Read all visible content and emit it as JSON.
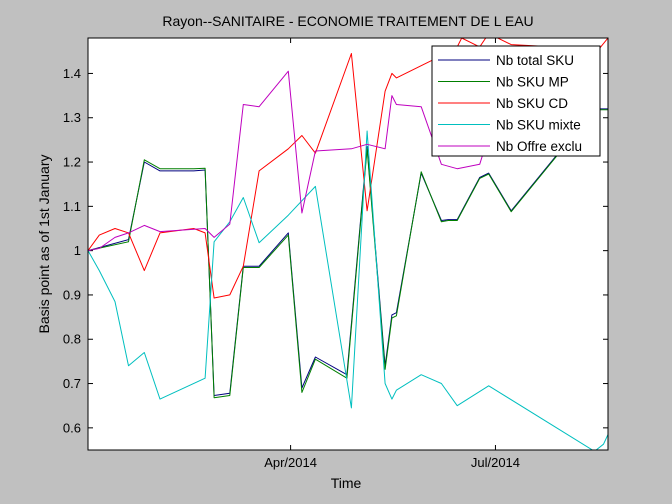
{
  "chart_data": {
    "type": "line",
    "title": "Rayon--SANITAIRE - ECONOMIE TRAITEMENT DE L EAU",
    "xlabel": "Time",
    "ylabel": "Basis point as of 1st January",
    "x_range": [
      "2014-01-01",
      "2014-08-20"
    ],
    "ylim": [
      0.55,
      1.48
    ],
    "x_ticks": [
      {
        "date": "2014-04-01",
        "label": "Apr/2014"
      },
      {
        "date": "2014-07-01",
        "label": "Jul/2014"
      }
    ],
    "y_ticks": [
      {
        "value": 0.6,
        "label": "0.6"
      },
      {
        "value": 0.7,
        "label": "0.7"
      },
      {
        "value": 0.8,
        "label": "0.8"
      },
      {
        "value": 0.9,
        "label": "0.9"
      },
      {
        "value": 1.0,
        "label": "1"
      },
      {
        "value": 1.1,
        "label": "1.1"
      },
      {
        "value": 1.2,
        "label": "1.2"
      },
      {
        "value": 1.3,
        "label": "1.3"
      },
      {
        "value": 1.4,
        "label": "1.4"
      }
    ],
    "grid": false,
    "legend_position": "top-right",
    "series": [
      {
        "name": "Nb total SKU",
        "color": "#00007f",
        "points": [
          [
            "2014-01-01",
            1.0
          ],
          [
            "2014-01-19",
            1.025
          ],
          [
            "2014-01-26",
            1.2
          ],
          [
            "2014-02-02",
            1.18
          ],
          [
            "2014-02-17",
            1.18
          ],
          [
            "2014-02-22",
            1.182
          ],
          [
            "2014-02-26",
            0.673
          ],
          [
            "2014-03-05",
            0.678
          ],
          [
            "2014-03-11",
            0.965
          ],
          [
            "2014-03-18",
            0.965
          ],
          [
            "2014-03-31",
            1.04
          ],
          [
            "2014-04-06",
            0.69
          ],
          [
            "2014-04-12",
            0.76
          ],
          [
            "2014-04-26",
            0.72
          ],
          [
            "2014-05-05",
            1.235
          ],
          [
            "2014-05-13",
            0.74
          ],
          [
            "2014-05-16",
            0.855
          ],
          [
            "2014-05-18",
            0.86
          ],
          [
            "2014-05-29",
            1.175
          ],
          [
            "2014-06-07",
            1.068
          ],
          [
            "2014-06-10",
            1.07
          ],
          [
            "2014-06-14",
            1.07
          ],
          [
            "2014-06-24",
            1.165
          ],
          [
            "2014-06-28",
            1.175
          ],
          [
            "2014-07-08",
            1.09
          ],
          [
            "2014-08-14",
            1.32
          ],
          [
            "2014-08-20",
            1.32
          ]
        ]
      },
      {
        "name": "Nb SKU MP",
        "color": "#007f00",
        "points": [
          [
            "2014-01-01",
            1.0
          ],
          [
            "2014-01-19",
            1.02
          ],
          [
            "2014-01-26",
            1.205
          ],
          [
            "2014-02-02",
            1.185
          ],
          [
            "2014-02-17",
            1.185
          ],
          [
            "2014-02-22",
            1.186
          ],
          [
            "2014-02-26",
            0.668
          ],
          [
            "2014-03-05",
            0.673
          ],
          [
            "2014-03-11",
            0.962
          ],
          [
            "2014-03-18",
            0.962
          ],
          [
            "2014-03-31",
            1.035
          ],
          [
            "2014-04-06",
            0.68
          ],
          [
            "2014-04-12",
            0.755
          ],
          [
            "2014-04-26",
            0.712
          ],
          [
            "2014-05-05",
            1.23
          ],
          [
            "2014-05-13",
            0.732
          ],
          [
            "2014-05-16",
            0.848
          ],
          [
            "2014-05-18",
            0.853
          ],
          [
            "2014-05-29",
            1.178
          ],
          [
            "2014-06-07",
            1.065
          ],
          [
            "2014-06-10",
            1.068
          ],
          [
            "2014-06-14",
            1.068
          ],
          [
            "2014-06-24",
            1.163
          ],
          [
            "2014-06-28",
            1.173
          ],
          [
            "2014-07-08",
            1.088
          ],
          [
            "2014-08-14",
            1.318
          ],
          [
            "2014-08-20",
            1.318
          ]
        ]
      },
      {
        "name": "Nb SKU CD",
        "color": "#ff0000",
        "points": [
          [
            "2014-01-01",
            1.0
          ],
          [
            "2014-01-06",
            1.035
          ],
          [
            "2014-01-13",
            1.05
          ],
          [
            "2014-01-19",
            1.04
          ],
          [
            "2014-01-26",
            0.955
          ],
          [
            "2014-02-02",
            1.04
          ],
          [
            "2014-02-17",
            1.05
          ],
          [
            "2014-02-22",
            1.04
          ],
          [
            "2014-02-26",
            0.893
          ],
          [
            "2014-03-05",
            0.9
          ],
          [
            "2014-03-11",
            0.965
          ],
          [
            "2014-03-18",
            1.18
          ],
          [
            "2014-03-31",
            1.23
          ],
          [
            "2014-04-06",
            1.26
          ],
          [
            "2014-04-12",
            1.22
          ],
          [
            "2014-04-28",
            1.445
          ],
          [
            "2014-05-05",
            1.09
          ],
          [
            "2014-05-13",
            1.36
          ],
          [
            "2014-05-16",
            1.4
          ],
          [
            "2014-05-18",
            1.39
          ],
          [
            "2014-06-07",
            1.44
          ],
          [
            "2014-06-10",
            1.42
          ],
          [
            "2014-06-16",
            1.48
          ],
          [
            "2014-06-24",
            1.46
          ],
          [
            "2014-06-28",
            1.49
          ],
          [
            "2014-07-08",
            1.465
          ],
          [
            "2014-08-16",
            1.455
          ],
          [
            "2014-08-20",
            1.48
          ]
        ]
      },
      {
        "name": "Nb SKU mixte",
        "color": "#00bfbf",
        "points": [
          [
            "2014-01-01",
            1.0
          ],
          [
            "2014-01-06",
            0.955
          ],
          [
            "2014-01-13",
            0.885
          ],
          [
            "2014-01-19",
            0.74
          ],
          [
            "2014-01-26",
            0.77
          ],
          [
            "2014-02-02",
            0.665
          ],
          [
            "2014-02-22",
            0.712
          ],
          [
            "2014-02-26",
            1.02
          ],
          [
            "2014-03-05",
            1.065
          ],
          [
            "2014-03-11",
            1.12
          ],
          [
            "2014-03-18",
            1.018
          ],
          [
            "2014-03-31",
            1.08
          ],
          [
            "2014-04-12",
            1.145
          ],
          [
            "2014-04-28",
            0.645
          ],
          [
            "2014-05-05",
            1.27
          ],
          [
            "2014-05-13",
            0.7
          ],
          [
            "2014-05-16",
            0.665
          ],
          [
            "2014-05-18",
            0.685
          ],
          [
            "2014-05-29",
            0.72
          ],
          [
            "2014-06-07",
            0.7
          ],
          [
            "2014-06-14",
            0.65
          ],
          [
            "2014-06-28",
            0.695
          ],
          [
            "2014-08-14",
            0.547
          ],
          [
            "2014-08-18",
            0.563
          ],
          [
            "2014-08-20",
            0.585
          ]
        ]
      },
      {
        "name": "Nb Offre exclu",
        "color": "#bf00bf",
        "points": [
          [
            "2014-01-01",
            1.0
          ],
          [
            "2014-01-06",
            1.005
          ],
          [
            "2014-01-13",
            1.03
          ],
          [
            "2014-01-19",
            1.04
          ],
          [
            "2014-01-26",
            1.057
          ],
          [
            "2014-02-02",
            1.043
          ],
          [
            "2014-02-22",
            1.05
          ],
          [
            "2014-02-26",
            1.03
          ],
          [
            "2014-03-05",
            1.06
          ],
          [
            "2014-03-11",
            1.33
          ],
          [
            "2014-03-18",
            1.325
          ],
          [
            "2014-03-31",
            1.405
          ],
          [
            "2014-04-06",
            1.085
          ],
          [
            "2014-04-12",
            1.225
          ],
          [
            "2014-04-28",
            1.23
          ],
          [
            "2014-05-05",
            1.24
          ],
          [
            "2014-05-13",
            1.23
          ],
          [
            "2014-05-16",
            1.35
          ],
          [
            "2014-05-18",
            1.33
          ],
          [
            "2014-05-29",
            1.325
          ],
          [
            "2014-06-07",
            1.195
          ],
          [
            "2014-06-14",
            1.185
          ],
          [
            "2014-06-24",
            1.195
          ],
          [
            "2014-06-28",
            1.26
          ]
        ]
      }
    ]
  }
}
